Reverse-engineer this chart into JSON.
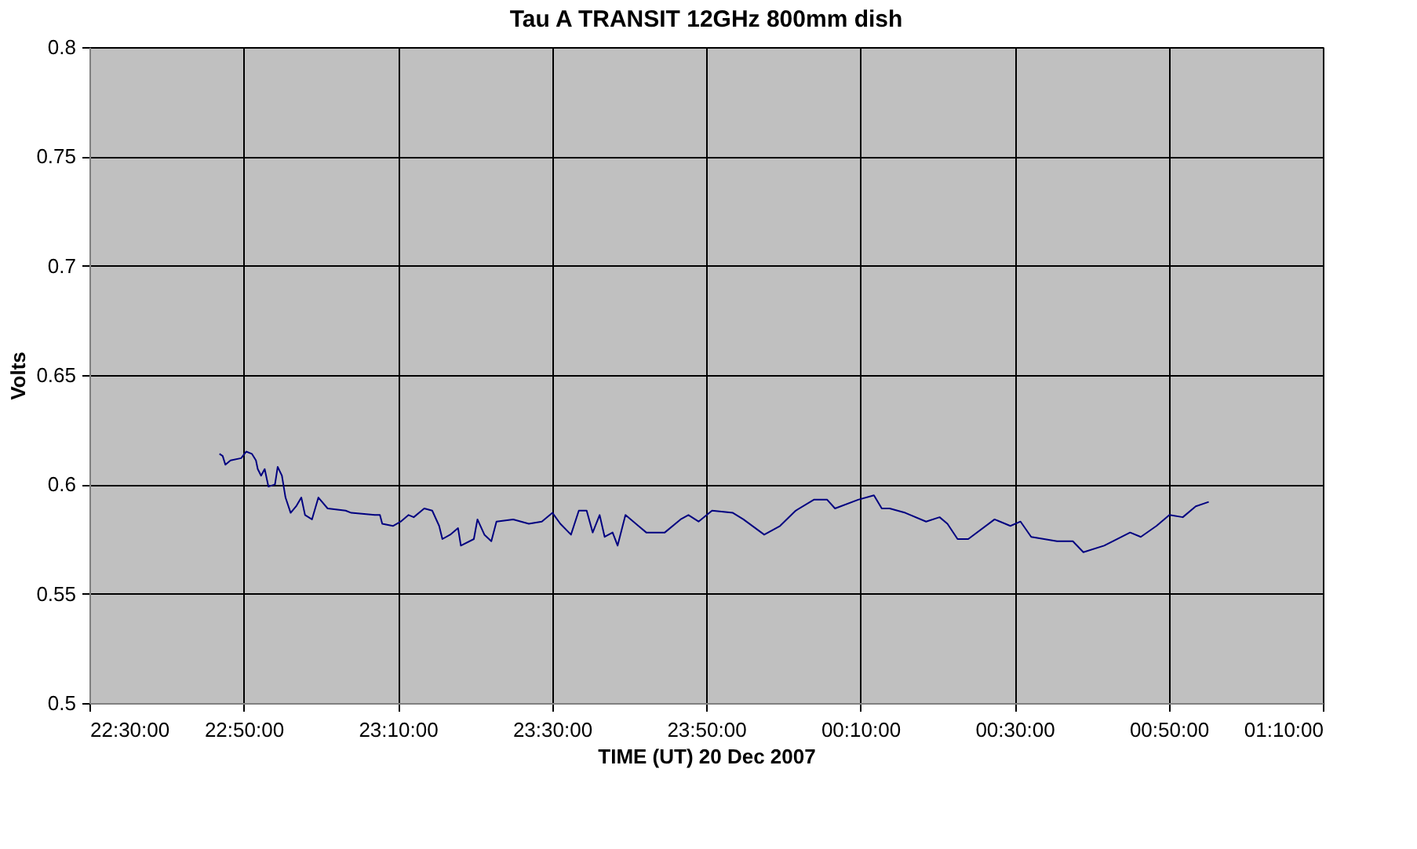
{
  "chart_data": {
    "type": "line",
    "title": "Tau A TRANSIT  12GHz  800mm dish",
    "xlabel": "TIME (UT) 20 Dec 2007",
    "ylabel": "Volts",
    "x": [
      "2007-12-20T22:46:52",
      "2007-12-20T22:47:17",
      "2007-12-20T22:47:38",
      "2007-12-20T22:48:18",
      "2007-12-20T22:49:41",
      "2007-12-20T22:50:20",
      "2007-12-20T22:51:04",
      "2007-12-20T22:51:36",
      "2007-12-20T22:51:50",
      "2007-12-20T22:52:16",
      "2007-12-20T22:52:44",
      "2007-12-20T22:53:13",
      "2007-12-20T22:54:04",
      "2007-12-20T22:54:25",
      "2007-12-20T22:54:58",
      "2007-12-20T22:55:26",
      "2007-12-20T22:56:06",
      "2007-12-20T22:56:49",
      "2007-12-20T22:57:29",
      "2007-12-20T22:57:58",
      "2007-12-20T22:58:52",
      "2007-12-20T22:59:42",
      "2007-12-20T23:00:54",
      "2007-12-20T23:03:14",
      "2007-12-20T23:03:58",
      "2007-12-20T23:07:01",
      "2007-12-20T23:07:41",
      "2007-12-20T23:07:59",
      "2007-12-20T23:09:22",
      "2007-12-20T23:10:23",
      "2007-12-20T23:11:24",
      "2007-12-20T23:12:04",
      "2007-12-20T23:13:26",
      "2007-12-20T23:14:28",
      "2007-12-20T23:15:22",
      "2007-12-20T23:15:47",
      "2007-12-20T23:16:48",
      "2007-12-20T23:17:49",
      "2007-12-20T23:18:11",
      "2007-12-20T23:19:52",
      "2007-12-20T23:20:20",
      "2007-12-20T23:21:14",
      "2007-12-20T23:22:08",
      "2007-12-20T23:22:48",
      "2007-12-20T23:24:58",
      "2007-12-20T23:27:00",
      "2007-12-20T23:28:41",
      "2007-12-20T23:30:04",
      "2007-12-20T23:31:05",
      "2007-12-20T23:32:28",
      "2007-12-20T23:33:29",
      "2007-12-20T23:34:30",
      "2007-12-20T23:35:17",
      "2007-12-20T23:36:11",
      "2007-12-20T23:36:50",
      "2007-12-20T23:37:52",
      "2007-12-20T23:38:31",
      "2007-12-20T23:39:32",
      "2007-12-20T23:41:13",
      "2007-12-20T23:42:14",
      "2007-12-20T23:44:38",
      "2007-12-20T23:46:41",
      "2007-12-20T23:47:42",
      "2007-12-20T23:49:01",
      "2007-12-20T23:50:46",
      "2007-12-20T23:53:28",
      "2007-12-20T23:54:50",
      "2007-12-20T23:57:32",
      "2007-12-20T23:59:35",
      "2007-12-21T00:01:37",
      "2007-12-21T00:03:58",
      "2007-12-21T00:05:42",
      "2007-12-21T00:06:43",
      "2007-12-21T00:09:43",
      "2007-12-21T00:11:46",
      "2007-12-21T00:12:47",
      "2007-12-21T00:13:48",
      "2007-12-21T00:15:50",
      "2007-12-21T00:18:32",
      "2007-12-21T00:20:17",
      "2007-12-21T00:21:18",
      "2007-12-21T00:22:37",
      "2007-12-21T00:24:00",
      "2007-12-21T00:27:25",
      "2007-12-21T00:29:28",
      "2007-12-21T00:30:47",
      "2007-12-21T00:32:10",
      "2007-12-21T00:35:31",
      "2007-12-21T00:37:34",
      "2007-12-21T00:38:56",
      "2007-12-21T00:41:38",
      "2007-12-21T00:45:00",
      "2007-12-21T00:46:23",
      "2007-12-21T00:48:25",
      "2007-12-21T00:50:06",
      "2007-12-21T00:51:50",
      "2007-12-21T00:53:31",
      "2007-12-21T00:55:12"
    ],
    "series": [
      {
        "color": "#000080",
        "values": [
          0.614,
          0.613,
          0.609,
          0.611,
          0.612,
          0.615,
          0.614,
          0.611,
          0.607,
          0.604,
          0.607,
          0.599,
          0.6,
          0.608,
          0.604,
          0.594,
          0.587,
          0.59,
          0.594,
          0.586,
          0.584,
          0.594,
          0.589,
          0.588,
          0.587,
          0.586,
          0.586,
          0.582,
          0.581,
          0.583,
          0.586,
          0.585,
          0.589,
          0.588,
          0.581,
          0.575,
          0.577,
          0.58,
          0.572,
          0.575,
          0.584,
          0.577,
          0.574,
          0.583,
          0.584,
          0.582,
          0.583,
          0.587,
          0.582,
          0.577,
          0.588,
          0.588,
          0.578,
          0.586,
          0.576,
          0.578,
          0.572,
          0.586,
          0.581,
          0.578,
          0.578,
          0.584,
          0.586,
          0.583,
          0.588,
          0.587,
          0.584,
          0.577,
          0.581,
          0.588,
          0.593,
          0.593,
          0.589,
          0.593,
          0.595,
          0.589,
          0.589,
          0.587,
          0.583,
          0.585,
          0.582,
          0.575,
          0.575,
          0.584,
          0.581,
          0.583,
          0.576,
          0.574,
          0.574,
          0.569,
          0.572,
          0.578,
          0.576,
          0.581,
          0.586,
          0.585,
          0.59,
          0.592
        ]
      }
    ],
    "xlim": [
      "2007-12-20T22:30",
      "2007-12-21T01:10"
    ],
    "xticks": [
      {
        "value": "2007-12-20T22:30",
        "label": "22:30:00"
      },
      {
        "value": "2007-12-20T22:50",
        "label": "22:50:00"
      },
      {
        "value": "2007-12-20T23:10",
        "label": "23:10:00"
      },
      {
        "value": "2007-12-20T23:30",
        "label": "23:30:00"
      },
      {
        "value": "2007-12-20T23:50",
        "label": "23:50:00"
      },
      {
        "value": "2007-12-21T00:10",
        "label": "00:10:00"
      },
      {
        "value": "2007-12-21T00:30",
        "label": "00:30:00"
      },
      {
        "value": "2007-12-21T00:50",
        "label": "00:50:00"
      },
      {
        "value": "2007-12-21T01:10",
        "label": "01:10:00"
      }
    ],
    "ylim": [
      0.5,
      0.8
    ],
    "yticks": [
      0.5,
      0.55,
      0.6,
      0.65,
      0.7,
      0.75,
      0.8
    ],
    "grid": true,
    "marker": "none",
    "line_style": "solid"
  }
}
